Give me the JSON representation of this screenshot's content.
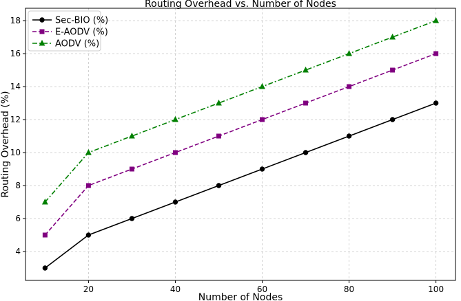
{
  "chart_data": {
    "type": "line",
    "title": "Routing Overhead vs. Number of Nodes",
    "xlabel": "Number of Nodes",
    "ylabel": "Routing Overhead (%)",
    "x": [
      10,
      20,
      30,
      40,
      50,
      60,
      70,
      80,
      90,
      100
    ],
    "xlim": [
      5.5,
      104.5
    ],
    "ylim": [
      2.25,
      18.75
    ],
    "x_ticks": [
      "20",
      "40",
      "60",
      "80",
      "100"
    ],
    "y_ticks": [
      "4",
      "6",
      "8",
      "10",
      "12",
      "14",
      "16",
      "18"
    ],
    "grid": true,
    "legend_position": "top-left",
    "series": [
      {
        "name": "Sec-BIO (%)",
        "values": [
          3,
          5,
          6,
          7,
          8,
          9,
          10,
          11,
          12,
          13
        ],
        "color": "#000000",
        "line_style": "solid",
        "marker": "circle"
      },
      {
        "name": "E-AODV (%)",
        "values": [
          5,
          8,
          9,
          10,
          11,
          12,
          13,
          14,
          15,
          16
        ],
        "color": "#800080",
        "line_style": "dashed",
        "marker": "square"
      },
      {
        "name": "AODV (%)",
        "values": [
          7,
          10,
          11,
          12,
          13,
          14,
          15,
          16,
          17,
          18
        ],
        "color": "#008000",
        "line_style": "dash-dot",
        "marker": "triangle"
      }
    ]
  }
}
